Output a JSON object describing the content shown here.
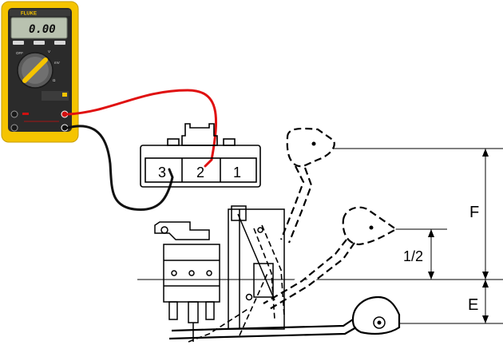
{
  "meter": {
    "brand": "FLUKE",
    "display_value": "0.00",
    "dial_labels": [
      "OFF",
      "V",
      "mV",
      "Ω"
    ],
    "body_color": "#f5c400",
    "face_color": "#2b2b2b"
  },
  "connector": {
    "pins": [
      {
        "label": "3"
      },
      {
        "label": "2"
      },
      {
        "label": "1"
      }
    ]
  },
  "leads": {
    "positive_color": "#e01010",
    "negative_color": "#111111"
  },
  "dimensions": {
    "top_label": "F",
    "mid_label": "1/2",
    "bottom_label": "E"
  }
}
